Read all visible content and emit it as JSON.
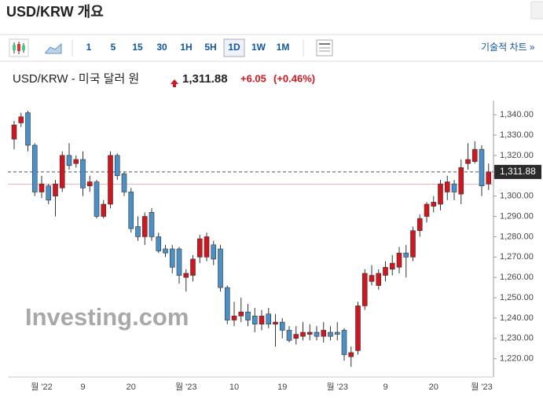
{
  "page": {
    "heading": "USD/KRW 개요",
    "toolbar": {
      "intervals": [
        "1",
        "5",
        "15",
        "30",
        "1H",
        "5H",
        "1D",
        "1W",
        "1M"
      ],
      "active_index": 6,
      "technical": "기술적 차트 »"
    }
  },
  "chart_data": {
    "type": "candlestick",
    "title": "USD/KRW - 미국 달러 원",
    "last": {
      "value": 1311.88,
      "label": "1,311.88"
    },
    "change": {
      "value": 6.05,
      "label": "+6.05"
    },
    "change_pct": {
      "value": 0.46,
      "label": "(+0.46%)"
    },
    "previous_close": 1305.83,
    "watermark": "Investing.com",
    "up_color": "#d0161e",
    "down_color": "#4c90c8",
    "categories": [
      null,
      null,
      null,
      null,
      "월 '22",
      null,
      null,
      null,
      null,
      null,
      "9",
      null,
      null,
      null,
      null,
      null,
      null,
      "20",
      null,
      null,
      null,
      null,
      null,
      null,
      null,
      "월 '23",
      null,
      null,
      null,
      null,
      null,
      null,
      "10",
      null,
      null,
      null,
      null,
      null,
      null,
      "19",
      null,
      null,
      null,
      null,
      null,
      null,
      null,
      "월 '23",
      null,
      null,
      null,
      null,
      null,
      null,
      "9",
      null,
      null,
      null,
      null,
      null,
      null,
      "20",
      null,
      null,
      null,
      null,
      null,
      null,
      "월 '23",
      null
    ],
    "open": [
      1328,
      1336,
      1341,
      1325,
      1302,
      1305,
      1300,
      1304,
      1320,
      1316,
      1318,
      1305,
      1307,
      1290,
      1296,
      1320,
      1311,
      1302,
      1285,
      1280,
      1292,
      1280,
      1274,
      1274,
      1274,
      1260,
      1261,
      1270,
      1270,
      1276,
      1274,
      1255,
      1239,
      1241,
      1243,
      1241,
      1237,
      1242,
      1237,
      1238,
      1234,
      1230,
      1231,
      1232,
      1233,
      1231,
      1233,
      1233,
      1234,
      1221,
      1224,
      1246,
      1258,
      1256,
      1261,
      1264,
      1265,
      1272,
      1270,
      1283,
      1290,
      1295,
      1296,
      1302,
      1306,
      1301,
      1316,
      1317,
      1323,
      1306
    ],
    "high": [
      1337,
      1341,
      1342,
      1326,
      1310,
      1306,
      1308,
      1322,
      1326,
      1320,
      1322,
      1310,
      1308,
      1298,
      1322,
      1321,
      1312,
      1304,
      1290,
      1292,
      1294,
      1282,
      1276,
      1276,
      1275,
      1264,
      1271,
      1281,
      1282,
      1278,
      1276,
      1256,
      1248,
      1250,
      1247,
      1245,
      1244,
      1245,
      1242,
      1240,
      1236,
      1236,
      1238,
      1237,
      1236,
      1238,
      1236,
      1238,
      1235,
      1226,
      1248,
      1264,
      1266,
      1264,
      1268,
      1271,
      1275,
      1276,
      1285,
      1291,
      1297,
      1300,
      1308,
      1310,
      1308,
      1318,
      1326,
      1327,
      1325,
      1316
    ],
    "low": [
      1323,
      1334,
      1322,
      1300,
      1299,
      1296,
      1290,
      1302,
      1313,
      1314,
      1300,
      1302,
      1289,
      1289,
      1294,
      1308,
      1300,
      1282,
      1278,
      1276,
      1278,
      1272,
      1270,
      1262,
      1257,
      1253,
      1258,
      1267,
      1268,
      1266,
      1253,
      1237,
      1236,
      1238,
      1236,
      1233,
      1234,
      1235,
      1226,
      1230,
      1228,
      1227,
      1229,
      1229,
      1229,
      1228,
      1229,
      1229,
      1219,
      1216,
      1222,
      1244,
      1256,
      1254,
      1258,
      1261,
      1262,
      1260,
      1268,
      1280,
      1287,
      1292,
      1293,
      1298,
      1298,
      1296,
      1313,
      1316,
      1300,
      1303
    ],
    "close": [
      1335,
      1339,
      1325,
      1302,
      1306,
      1298,
      1306,
      1320,
      1315,
      1318,
      1304,
      1307,
      1290,
      1296,
      1320,
      1310,
      1302,
      1284,
      1280,
      1290,
      1280,
      1273,
      1272,
      1265,
      1261,
      1262,
      1269,
      1279,
      1280,
      1269,
      1255,
      1239,
      1241,
      1243,
      1239,
      1237,
      1241,
      1237,
      1238,
      1234,
      1229,
      1232,
      1233,
      1233,
      1231,
      1234,
      1231,
      1232,
      1222,
      1223,
      1246,
      1262,
      1261,
      1262,
      1265,
      1267,
      1272,
      1270,
      1283,
      1289,
      1296,
      1297,
      1306,
      1307,
      1302,
      1314,
      1318,
      1323,
      1305,
      1311.88
    ],
    "ylim": [
      1211,
      1347
    ],
    "yticks": [
      {
        "value": 1220,
        "label": "1,220.00"
      },
      {
        "value": 1230,
        "label": "1,230.00"
      },
      {
        "value": 1240,
        "label": "1,240.00"
      },
      {
        "value": 1250,
        "label": "1,250.00"
      },
      {
        "value": 1260,
        "label": "1,260.00"
      },
      {
        "value": 1270,
        "label": "1,270.00"
      },
      {
        "value": 1280,
        "label": "1,280.00"
      },
      {
        "value": 1290,
        "label": "1,290.00"
      },
      {
        "value": 1300,
        "label": "1,300.00"
      },
      {
        "value": 1310,
        "label": "1,310.00"
      },
      {
        "value": 1320,
        "label": "1,320.00"
      },
      {
        "value": 1330,
        "label": "1,330.00"
      },
      {
        "value": 1340,
        "label": "1,340.00"
      }
    ],
    "grid": false
  }
}
